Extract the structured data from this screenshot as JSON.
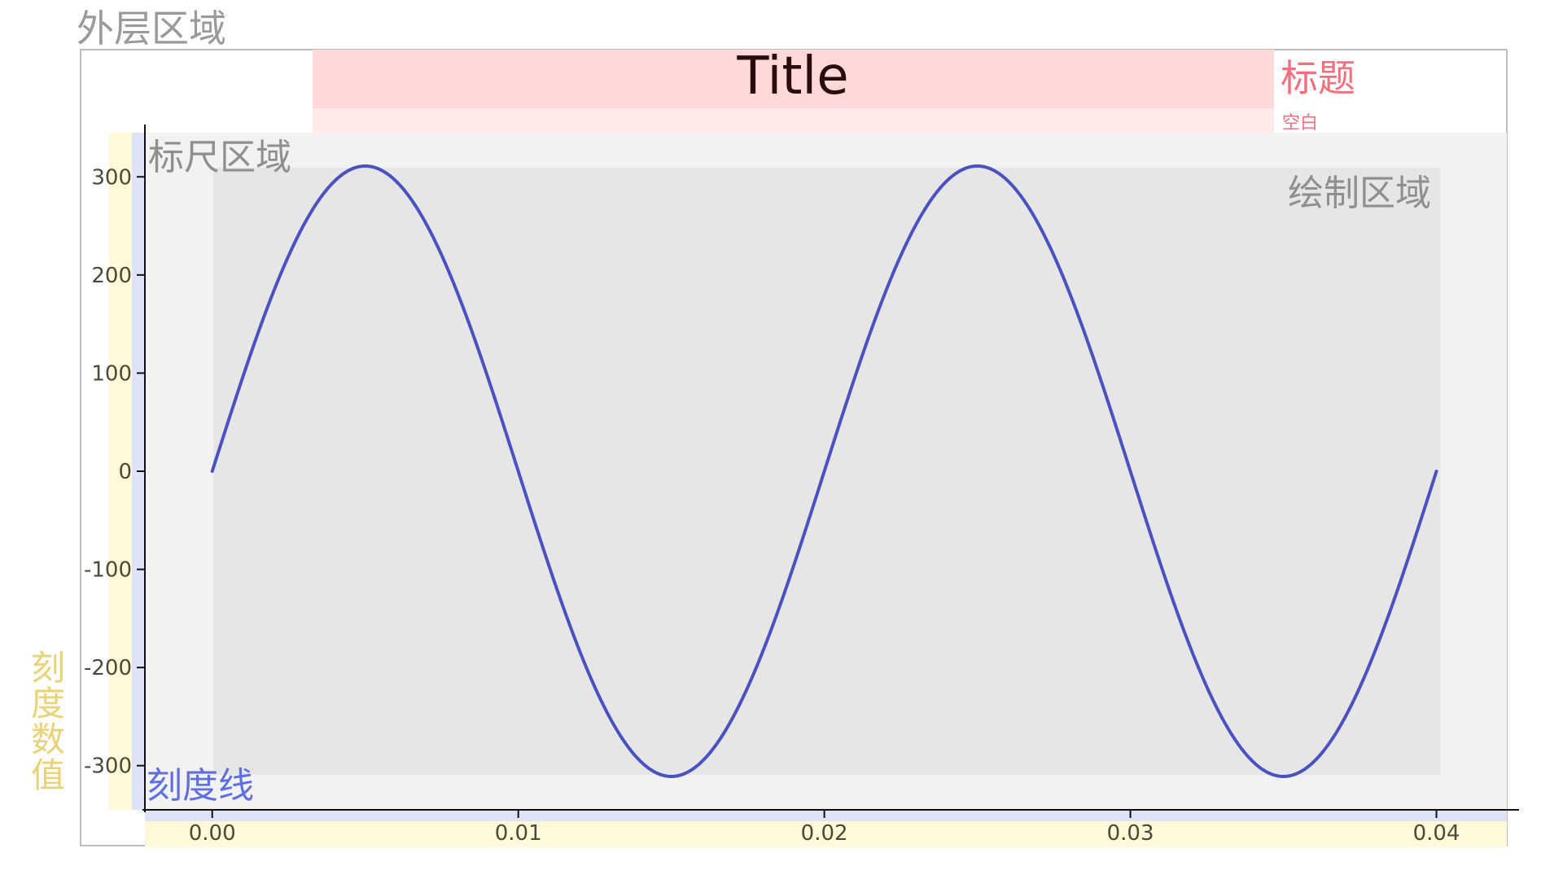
{
  "region_labels": {
    "outer": "外层区域",
    "title_region": "标题",
    "padding": "空白",
    "axis_region": "标尺区域",
    "plot_region": "绘制区域",
    "tick_lines": "刻度线",
    "tick_values": "刻度数值"
  },
  "colors": {
    "title_bg": "#ffd9d9",
    "padding_bg": "#ffeaea",
    "axis_region_bg": "#f2f2f2",
    "plot_bg": "#e6e6e6",
    "tick_line_band": "#dfe3f7",
    "tick_value_band": "#fff9d8",
    "series": "#4a52c0",
    "title_text": "#2b0c0c",
    "title_label": "#f07080",
    "tick_line_label": "#5f6fe0",
    "tick_value_label": "#e8d27a",
    "region_label": "#9a9a9a",
    "border": "#bdbdbd"
  },
  "chart_data": {
    "type": "line",
    "title": "Title",
    "xlabel": "",
    "ylabel": "",
    "xlim": [
      -0.0022,
      0.0423
    ],
    "ylim": [
      -345,
      345
    ],
    "xticks": [
      0.0,
      0.01,
      0.02,
      0.03,
      0.04
    ],
    "xtick_labels": [
      "0.00",
      "0.01",
      "0.02",
      "0.03",
      "0.04"
    ],
    "yticks": [
      300,
      200,
      100,
      0,
      -100,
      -200,
      -300
    ],
    "ytick_labels": [
      "300",
      "200",
      "100",
      "0",
      "-100",
      "-200",
      "-300"
    ],
    "grid": false,
    "series": [
      {
        "x": [
          0.0,
          0.001,
          0.002,
          0.003,
          0.004,
          0.005,
          0.006,
          0.007,
          0.008,
          0.009,
          0.01,
          0.011,
          0.012,
          0.013,
          0.014,
          0.015,
          0.016,
          0.017,
          0.018,
          0.019,
          0.02,
          0.021,
          0.022,
          0.023,
          0.024,
          0.025,
          0.026,
          0.027,
          0.028,
          0.029,
          0.03,
          0.031,
          0.032,
          0.033,
          0.034,
          0.035,
          0.036,
          0.037,
          0.038,
          0.039,
          0.04
        ],
        "values": [
          0,
          96,
          182,
          251,
          295,
          311,
          295,
          251,
          182,
          96,
          0,
          -96,
          -182,
          -251,
          -295,
          -311,
          -295,
          -251,
          -182,
          -96,
          0,
          96,
          182,
          251,
          295,
          311,
          295,
          251,
          182,
          96,
          0,
          -96,
          -182,
          -251,
          -295,
          -311,
          -295,
          -251,
          -182,
          -96,
          0
        ]
      }
    ]
  }
}
